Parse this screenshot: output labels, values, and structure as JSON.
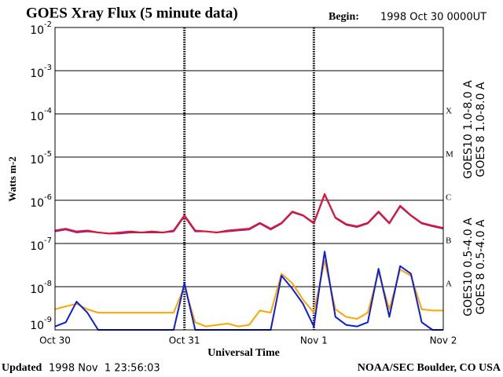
{
  "chart_data": {
    "type": "line",
    "title": "GOES Xray Flux (5 minute data)",
    "begin_label": "Begin:",
    "begin_value": "1998 Oct 30 0000UT",
    "xlabel": "Universal Time",
    "ylabel": "Watts m-2",
    "updated_label": "Updated",
    "updated_value": "1998 Nov  1 23:56:03",
    "credit": "NOAA/SEC Boulder, CO USA",
    "log_scale": true,
    "grid": true,
    "xlim": [
      0,
      72
    ],
    "xticks": [
      {
        "value": 0,
        "label": "Oct 30"
      },
      {
        "value": 24,
        "label": "Oct 31"
      },
      {
        "value": 48,
        "label": "Nov 1"
      },
      {
        "value": 72,
        "label": "Nov 2"
      }
    ],
    "ylim": [
      1e-09,
      0.01
    ],
    "yticks": [
      {
        "value": 1e-09,
        "label": "10",
        "exponent": "-9"
      },
      {
        "value": 1e-08,
        "label": "10",
        "exponent": "-8"
      },
      {
        "value": 1e-07,
        "label": "10",
        "exponent": "-7"
      },
      {
        "value": 1e-06,
        "label": "10",
        "exponent": "-6"
      },
      {
        "value": 1e-05,
        "label": "10",
        "exponent": "-5"
      },
      {
        "value": 0.0001,
        "label": "10",
        "exponent": "-4"
      },
      {
        "value": 0.001,
        "label": "10",
        "exponent": "-3"
      },
      {
        "value": 0.01,
        "label": "10",
        "exponent": "-2"
      }
    ],
    "flare_classes": [
      {
        "value": 0.0001,
        "label": "X"
      },
      {
        "value": 1e-05,
        "label": "M"
      },
      {
        "value": 1e-06,
        "label": "C"
      },
      {
        "value": 1e-07,
        "label": "B"
      },
      {
        "value": 1e-08,
        "label": "A"
      }
    ],
    "x": [
      0,
      2,
      4,
      6,
      8,
      10,
      12,
      14,
      16,
      18,
      20,
      22,
      24,
      26,
      28,
      30,
      32,
      34,
      36,
      38,
      40,
      42,
      44,
      46,
      48,
      50,
      52,
      54,
      56,
      58,
      60,
      62,
      64,
      66,
      68,
      70,
      72
    ],
    "series": [
      {
        "name": "GOES10 1.0-8.0 A",
        "color": "#7a2fa8",
        "values": [
          1.9e-07,
          2.1e-07,
          1.8e-07,
          1.9e-07,
          1.8e-07,
          1.7e-07,
          1.7e-07,
          1.8e-07,
          1.8e-07,
          1.8e-07,
          1.8e-07,
          1.9e-07,
          4.3e-07,
          1.9e-07,
          1.9e-07,
          1.8e-07,
          1.9e-07,
          2e-07,
          2.1e-07,
          2.9e-07,
          2.1e-07,
          2.9e-07,
          5.3e-07,
          4.4e-07,
          2.9e-07,
          1.35e-06,
          3.9e-07,
          2.7e-07,
          2.4e-07,
          2.9e-07,
          5.3e-07,
          2.9e-07,
          7.2e-07,
          4.4e-07,
          2.9e-07,
          2.5e-07,
          2.2e-07
        ]
      },
      {
        "name": "GOES 8 1.0-8.0 A",
        "color": "#e8102a",
        "values": [
          2e-07,
          2.2e-07,
          1.9e-07,
          2e-07,
          1.8e-07,
          1.7e-07,
          1.8e-07,
          1.9e-07,
          1.8e-07,
          1.9e-07,
          1.8e-07,
          2e-07,
          4.5e-07,
          2e-07,
          1.9e-07,
          1.8e-07,
          2e-07,
          2.1e-07,
          2.2e-07,
          3e-07,
          2.2e-07,
          3e-07,
          5.5e-07,
          4.5e-07,
          3e-07,
          1.4e-06,
          4e-07,
          2.8e-07,
          2.5e-07,
          3e-07,
          5.5e-07,
          3e-07,
          7.5e-07,
          4.5e-07,
          3e-07,
          2.6e-07,
          2.3e-07
        ]
      },
      {
        "name": "GOES10 0.5-4.0 A",
        "color": "#ffa500",
        "values": [
          3e-09,
          3.5e-09,
          4e-09,
          3e-09,
          2.5e-09,
          2.5e-09,
          2.5e-09,
          2.5e-09,
          2.5e-09,
          2.5e-09,
          2.5e-09,
          2.5e-09,
          1e-08,
          1.5e-09,
          1.2e-09,
          1.3e-09,
          1.4e-09,
          1.2e-09,
          1.3e-09,
          2.8e-09,
          2.5e-09,
          2e-08,
          1.2e-08,
          5e-09,
          2.5e-09,
          4e-08,
          3e-09,
          2e-09,
          1.8e-09,
          2.5e-09,
          2.2e-08,
          3e-09,
          2.5e-08,
          1.8e-08,
          3e-09,
          2.8e-09,
          2.8e-09
        ]
      },
      {
        "name": "GOES 8 0.5-4.0 A",
        "color": "#0a1ee0",
        "values": [
          1.2e-09,
          1.5e-09,
          4.5e-09,
          2.5e-09,
          1e-09,
          1e-09,
          1e-09,
          1e-09,
          1e-09,
          1e-09,
          1e-09,
          1e-09,
          1.2e-08,
          1e-09,
          1e-09,
          1e-09,
          1e-09,
          1e-09,
          1e-09,
          1e-09,
          1e-09,
          1.8e-08,
          9e-09,
          4e-09,
          1.2e-09,
          6.5e-08,
          2e-09,
          1.3e-09,
          1.2e-09,
          1.5e-09,
          2.6e-08,
          2e-09,
          3e-08,
          2e-08,
          1.5e-09,
          1e-09,
          1e-09
        ]
      }
    ]
  }
}
